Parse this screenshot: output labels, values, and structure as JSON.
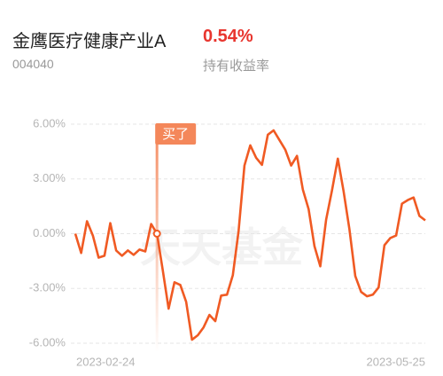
{
  "header": {
    "fund_name": "金鹰医疗健康产业A",
    "fund_code": "004040",
    "holding_return": "0.54%",
    "holding_return_label": "持有收益率"
  },
  "chart_data": {
    "type": "line",
    "watermark": "天天基金",
    "categories": [
      "2023-02-24",
      null,
      null,
      null,
      null,
      null,
      null,
      null,
      null,
      null,
      null,
      null,
      null,
      null,
      null,
      null,
      null,
      null,
      null,
      null,
      null,
      null,
      null,
      null,
      null,
      null,
      null,
      null,
      null,
      null,
      null,
      null,
      null,
      null,
      null,
      null,
      null,
      null,
      null,
      null,
      null,
      null,
      null,
      null,
      null,
      null,
      null,
      null,
      null,
      null,
      null,
      null,
      null,
      null,
      null,
      null,
      null,
      null,
      null,
      null,
      "2023-05-25"
    ],
    "values": [
      0,
      -1.06,
      0.68,
      -0.1,
      -1.31,
      -1.21,
      0.58,
      -0.92,
      -1.21,
      -0.92,
      -1.16,
      -0.87,
      -0.97,
      0.53,
      0,
      -2.03,
      -4.11,
      -2.66,
      -2.81,
      -3.73,
      -5.81,
      -5.56,
      -5.13,
      -4.45,
      -4.79,
      -3.39,
      -3.34,
      -2.27,
      0.15,
      3.73,
      4.84,
      4.16,
      3.77,
      5.42,
      5.66,
      5.13,
      4.6,
      3.73,
      4.26,
      2.42,
      1.35,
      -0.68,
      -1.79,
      0.77,
      2.37,
      4.11,
      2.32,
      0.24,
      -2.32,
      -3.19,
      -3.43,
      -3.34,
      -2.95,
      -0.63,
      -0.24,
      -0.1,
      1.64,
      1.84,
      1.98,
      0.97,
      0.73
    ],
    "color": "#f05a23",
    "annotation": {
      "text": "买了",
      "at": 14,
      "color": "#f4875a"
    },
    "ylim": [
      -6.5,
      6.5
    ],
    "yticks": [
      {
        "value": 6,
        "label": "6.00%"
      },
      {
        "value": 3,
        "label": "3.00%"
      },
      {
        "value": 0,
        "label": "0.00%"
      },
      {
        "value": -3,
        "label": "-3.00%"
      },
      {
        "value": -6,
        "label": "-6.00%"
      }
    ],
    "grid": true
  }
}
